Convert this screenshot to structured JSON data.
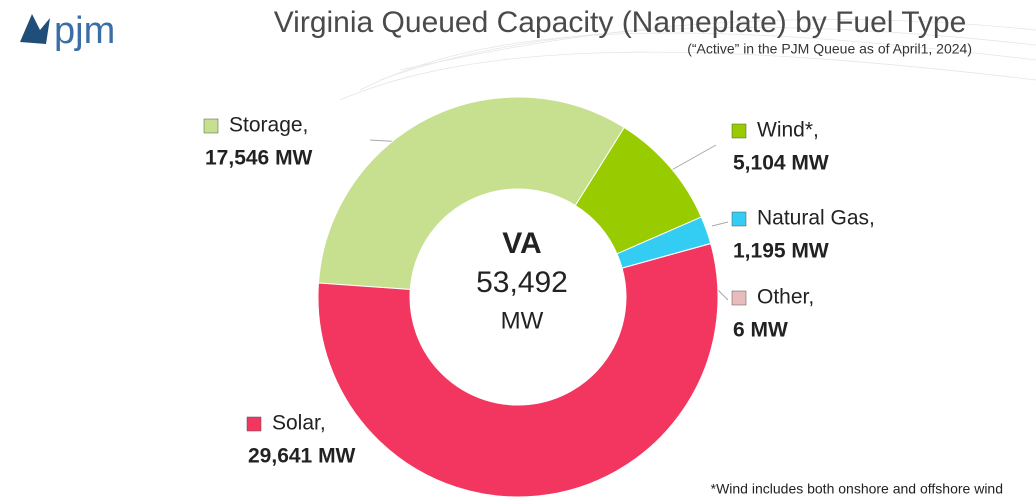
{
  "logo": "pjm",
  "chart_data": {
    "type": "donut",
    "title": "Virginia Queued Capacity (Nameplate) by Fuel Type",
    "subtitle": "(“Active” in the PJM Queue as of April1, 2024)",
    "center_text": [
      "VA",
      "53,492",
      "MW"
    ],
    "categories": [
      "Storage,",
      "Wind*,",
      "Natural Gas,",
      "Other,",
      "Solar,"
    ],
    "values": [
      17546,
      5104,
      1195,
      6,
      29641
    ],
    "value_labels": [
      "17,546 MW",
      "5,104 MW",
      "1,195 MW",
      "6 MW",
      "29,641 MW"
    ],
    "colors": [
      "#c6e08f",
      "#99cc00",
      "#33ccf2",
      "#e8bcbc",
      "#f2365f"
    ],
    "footnote": "*Wind includes both onshore and offshore wind"
  }
}
